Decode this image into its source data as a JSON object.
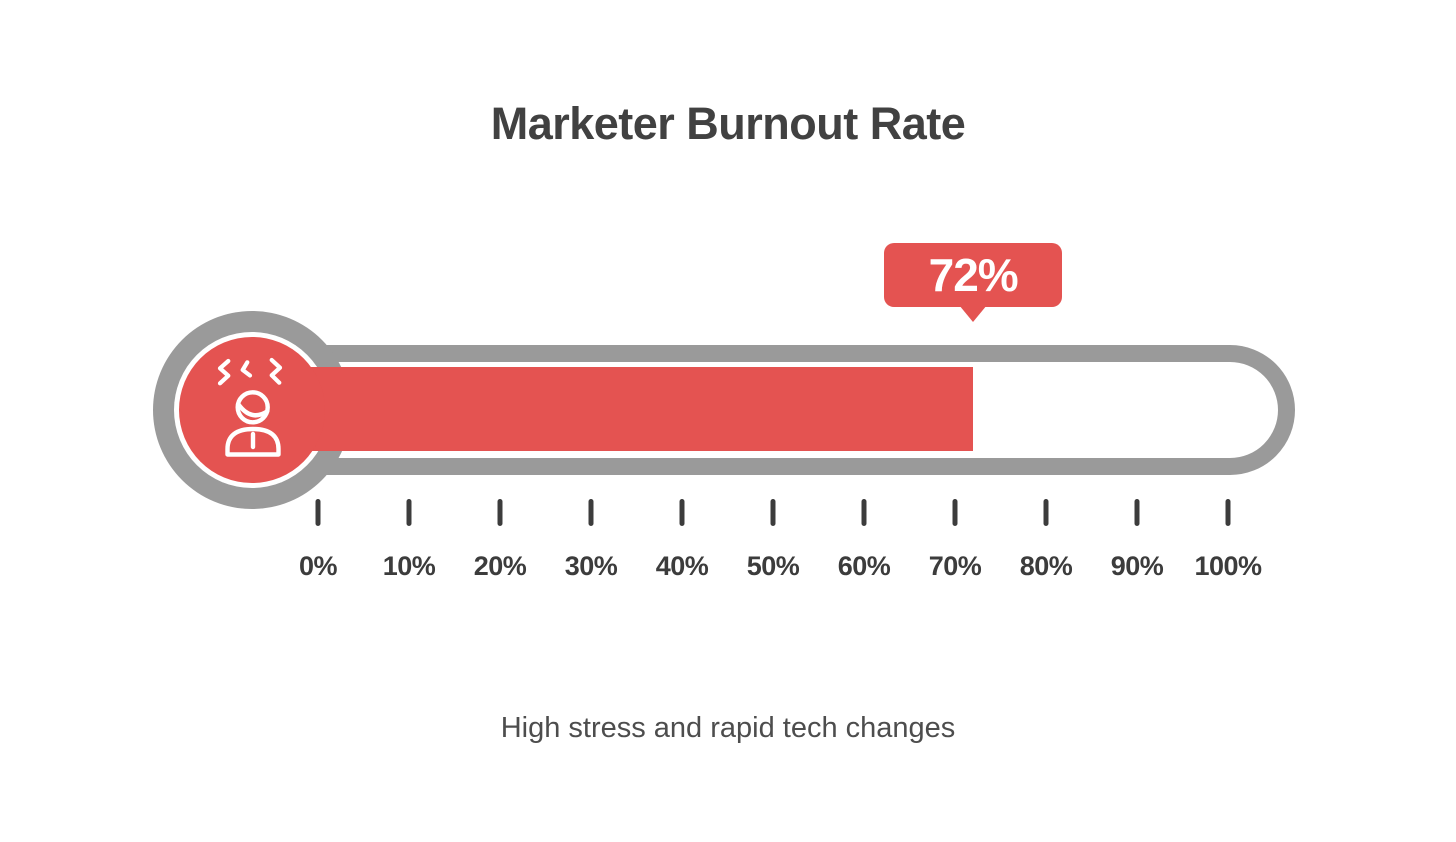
{
  "title": "Marketer Burnout Rate",
  "subtitle": "High stress and rapid tech changes",
  "gauge": {
    "value": 72,
    "value_label": "72%",
    "icon": "stressed-person-icon"
  },
  "scale": {
    "tick_labels": [
      "0%",
      "10%",
      "20%",
      "30%",
      "40%",
      "50%",
      "60%",
      "70%",
      "80%",
      "90%",
      "100%"
    ]
  },
  "colors": {
    "red": "#E45351",
    "gray": "#9A9A9A",
    "text_dark": "#414141",
    "tick": "#3C3C3C",
    "subtle": "#4D4D4D",
    "icon_stroke": "#FFFFFF"
  },
  "chart_data": {
    "type": "gauge",
    "title": "Marketer Burnout Rate",
    "subtitle": "High stress and rapid tech changes",
    "value": 72,
    "unit": "%",
    "min": 0,
    "max": 100,
    "tick_interval": 10,
    "tick_labels": [
      "0%",
      "10%",
      "20%",
      "30%",
      "40%",
      "50%",
      "60%",
      "70%",
      "80%",
      "90%",
      "100%"
    ],
    "callout_label": "72%",
    "fill_color": "#E45351",
    "track_color": "#FFFFFF",
    "outline_color": "#9A9A9A",
    "style": "horizontal thermometer with stressed-person bulb icon, callout bubble above fill edge"
  }
}
